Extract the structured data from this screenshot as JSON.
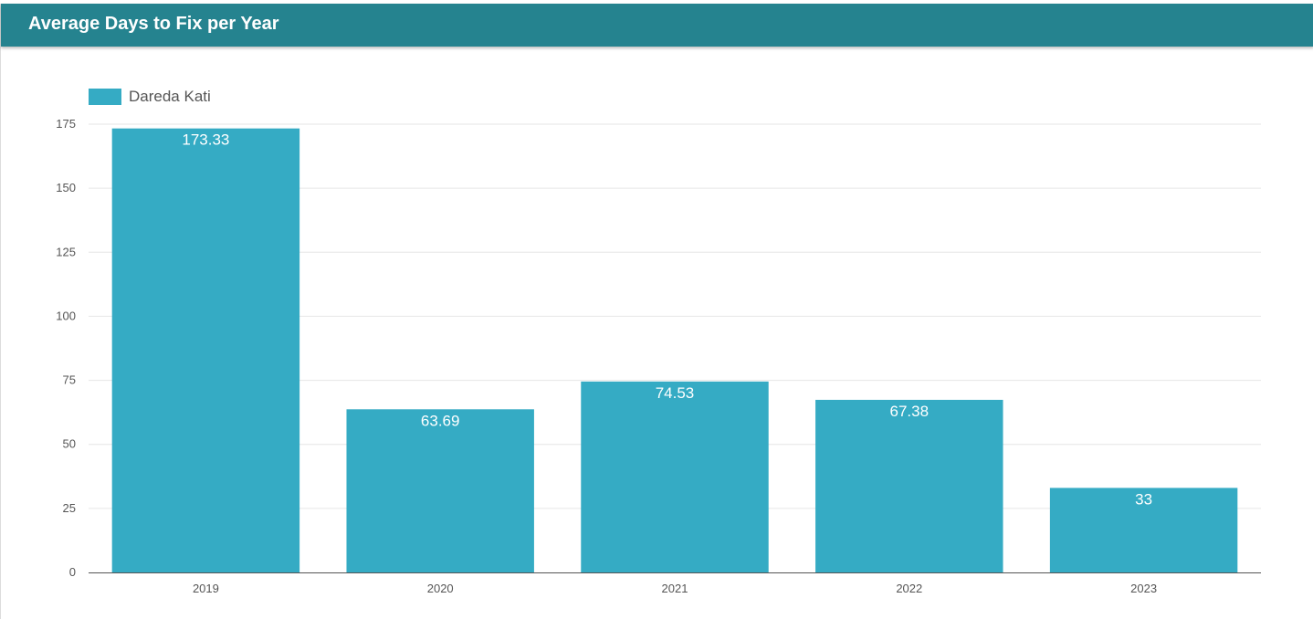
{
  "header": {
    "title": "Average Days to Fix per Year"
  },
  "colors": {
    "header_bg": "#25838f",
    "bar": "#35abc4",
    "grid": "#e6e6e6",
    "axis": "#555555"
  },
  "chart_data": {
    "type": "bar",
    "title": "Average Days to Fix per Year",
    "categories": [
      "2019",
      "2020",
      "2021",
      "2022",
      "2023"
    ],
    "series": [
      {
        "name": "Dareda Kati",
        "values": [
          173.33,
          63.69,
          74.53,
          67.38,
          33
        ]
      }
    ],
    "data_labels": [
      "173.33",
      "63.69",
      "74.53",
      "67.38",
      "33"
    ],
    "ylim": [
      0,
      175
    ],
    "yticks": [
      0,
      25,
      50,
      75,
      100,
      125,
      150,
      175
    ],
    "xlabel": "",
    "ylabel": "",
    "grid": true,
    "legend": "top-left"
  }
}
